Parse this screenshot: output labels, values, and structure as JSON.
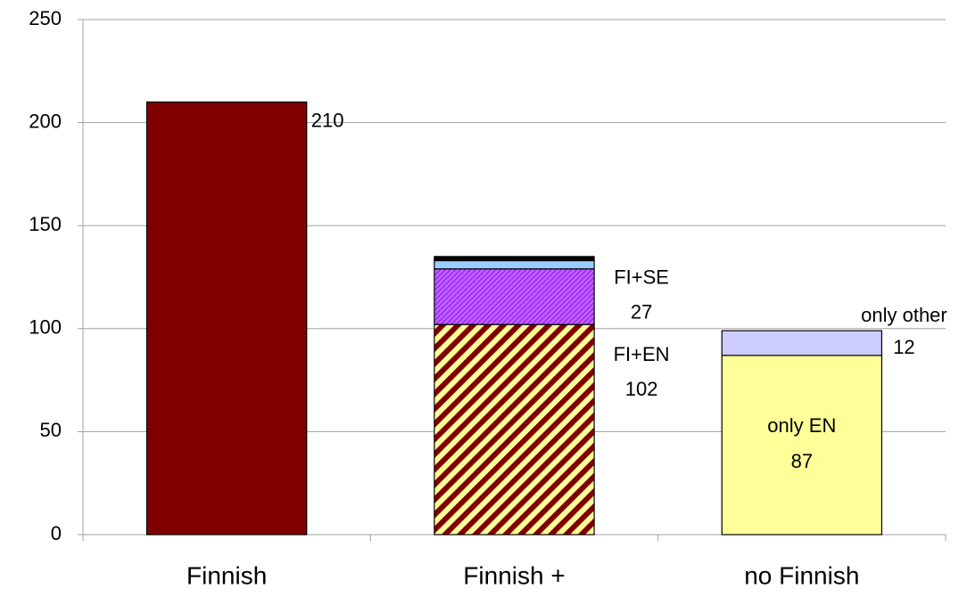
{
  "chart_data": {
    "type": "stacked_bar",
    "categories": [
      "Finnish",
      "Finnish +",
      "no Finnish"
    ],
    "series": [
      {
        "color": "#800000",
        "values": [
          210,
          null,
          null
        ]
      },
      {
        "name": "FI+EN",
        "color": "#800000",
        "pattern": "diagonal",
        "pattern_color": "#ffff99",
        "values": [
          null,
          102,
          null
        ]
      },
      {
        "name": "FI+SE",
        "color": "#9933ff",
        "pattern": "fine",
        "pattern_color": "#cc66ff",
        "values": [
          null,
          27,
          null
        ]
      },
      {
        "color": "#99ccff",
        "values": [
          null,
          4,
          null
        ]
      },
      {
        "color": "#000000",
        "values": [
          null,
          2,
          null
        ]
      },
      {
        "name": "only EN",
        "color": "#ffff99",
        "values": [
          null,
          null,
          87
        ]
      },
      {
        "name": "only other",
        "color": "#ccccff",
        "values": [
          null,
          null,
          12
        ]
      }
    ],
    "ylim": [
      0,
      250
    ],
    "yticks": [
      0,
      50,
      100,
      150,
      200,
      250
    ],
    "grid": true
  }
}
